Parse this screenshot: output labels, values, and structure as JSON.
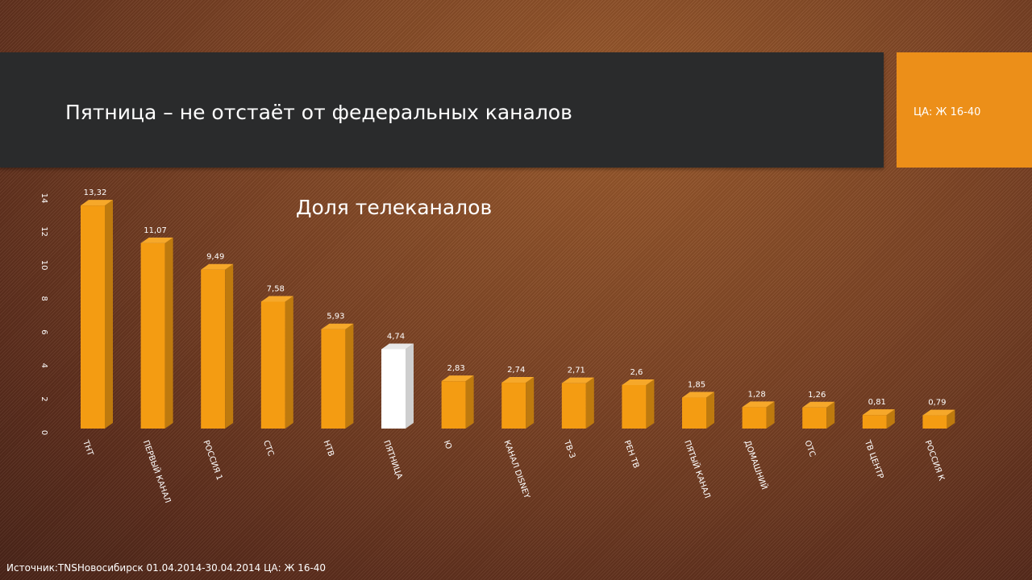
{
  "header": {
    "title": "Пятница – не отстаёт от федеральных каналов",
    "audience": "ЦА: Ж 16-40"
  },
  "footer": {
    "source": "Источник:TNSНовосибирск 01.04.2014-30.04.2014 ЦА: Ж 16-40"
  },
  "colors": {
    "bar": "#f49c12",
    "bar_highlight": "#ffffff",
    "title_bar": "#2a2b2c",
    "accent": "#ec8f19"
  },
  "chart_data": {
    "type": "bar",
    "title": "Доля телеканалов",
    "categories": [
      "ТНТ",
      "ПЕРВЫЙ КАНАЛ",
      "РОССИЯ 1",
      "СТС",
      "НТВ",
      "ПЯТНИЦА",
      "Ю",
      "КАНАЛ DISNEY",
      "ТВ-3",
      "РЕН ТВ",
      "ПЯТЫЙ КАНАЛ",
      "ДОМАШНИЙ",
      "ОТС",
      "ТВ ЦЕНТР",
      "РОССИЯ К"
    ],
    "values": [
      13.32,
      11.07,
      9.49,
      7.58,
      5.93,
      4.74,
      2.83,
      2.74,
      2.71,
      2.6,
      1.85,
      1.28,
      1.26,
      0.81,
      0.79
    ],
    "data_labels": [
      "13,32",
      "11,07",
      "9,49",
      "7,58",
      "5,93",
      "4,74",
      "2,83",
      "2,74",
      "2,71",
      "2,6",
      "1,85",
      "1,28",
      "1,26",
      "0,81",
      "0,79"
    ],
    "highlight_category": "ПЯТНИЦА",
    "y_ticks": [
      "0",
      "2",
      "4",
      "6",
      "8",
      "10",
      "12",
      "14"
    ],
    "ylim": [
      0,
      14
    ],
    "grid": false,
    "legend": "none"
  }
}
